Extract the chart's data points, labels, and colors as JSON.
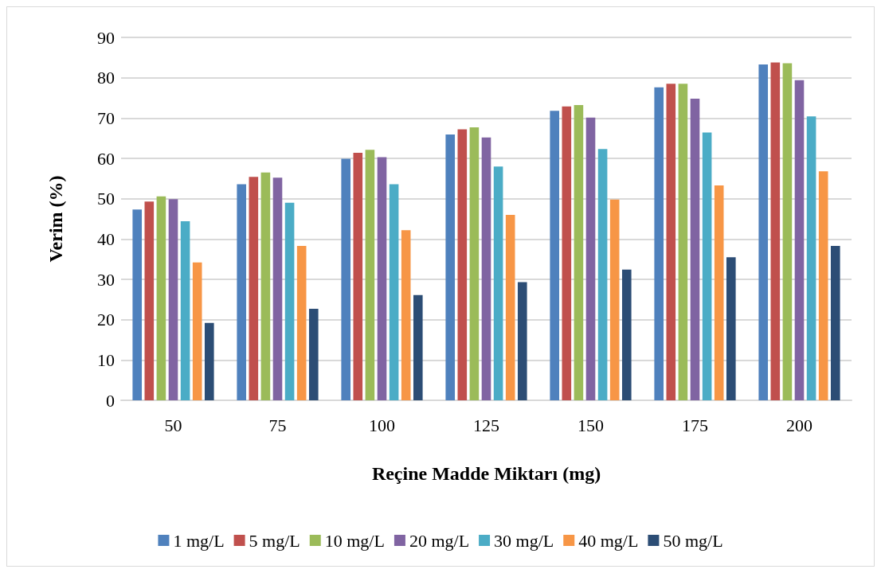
{
  "chart_data": {
    "type": "bar",
    "xlabel": "Reçine Madde Miktarı (mg)",
    "ylabel": "Verim (%)",
    "categories": [
      "50",
      "75",
      "100",
      "125",
      "150",
      "175",
      "200"
    ],
    "series": [
      {
        "name": "1 mg/L",
        "color": "#4f81bd",
        "values": [
          47.3,
          53.6,
          59.9,
          65.9,
          71.8,
          77.6,
          83.3
        ]
      },
      {
        "name": "5 mg/L",
        "color": "#c0504d",
        "values": [
          49.3,
          55.4,
          61.4,
          67.2,
          72.9,
          78.5,
          83.8
        ]
      },
      {
        "name": "10 mg/L",
        "color": "#9bbb59",
        "values": [
          50.6,
          56.5,
          62.1,
          67.7,
          73.2,
          78.5,
          83.6
        ]
      },
      {
        "name": "20 mg/L",
        "color": "#8064a2",
        "values": [
          49.9,
          55.2,
          60.3,
          65.2,
          70.1,
          74.8,
          79.4
        ]
      },
      {
        "name": "30 mg/L",
        "color": "#4bacc6",
        "values": [
          44.4,
          49.0,
          53.6,
          58.0,
          62.3,
          66.4,
          70.4
        ]
      },
      {
        "name": "40 mg/L",
        "color": "#f79646",
        "values": [
          34.2,
          38.3,
          42.2,
          46.0,
          49.8,
          53.3,
          56.8
        ]
      },
      {
        "name": "50 mg/L",
        "color": "#2c4d75",
        "values": [
          19.2,
          22.7,
          26.1,
          29.3,
          32.4,
          35.5,
          38.3
        ]
      }
    ],
    "ylim": [
      0,
      90
    ],
    "yticks": [
      0,
      10,
      20,
      30,
      40,
      50,
      60,
      70,
      80,
      90
    ],
    "grid": "y",
    "legend": "bottom"
  }
}
